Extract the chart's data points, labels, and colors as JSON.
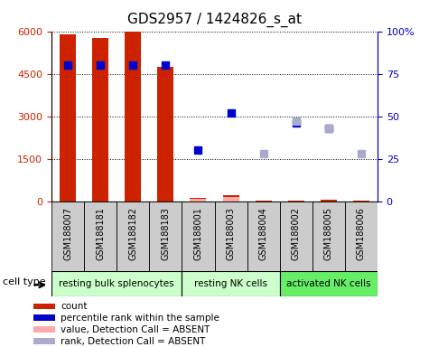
{
  "title": "GDS2957 / 1424826_s_at",
  "samples": [
    "GSM188007",
    "GSM188181",
    "GSM188182",
    "GSM188183",
    "GSM188001",
    "GSM188003",
    "GSM188004",
    "GSM188002",
    "GSM188005",
    "GSM188006"
  ],
  "counts": [
    5900,
    5750,
    6000,
    4750,
    120,
    200,
    30,
    20,
    50,
    10
  ],
  "percentile_ranks_right": [
    80,
    80,
    80,
    80,
    null,
    null,
    null,
    null,
    null,
    null
  ],
  "blue_present_right": [
    null,
    null,
    null,
    null,
    30,
    52,
    null,
    46,
    43,
    null
  ],
  "absent_ranks_right": [
    null,
    null,
    null,
    null,
    null,
    null,
    28,
    47,
    null,
    28
  ],
  "absent_value_bars": [
    null,
    null,
    null,
    null,
    100,
    140,
    null,
    null,
    null,
    null
  ],
  "absent_value_right": [
    null,
    null,
    null,
    null,
    null,
    null,
    null,
    null,
    43,
    null
  ],
  "count_color": "#cc2200",
  "blue_present_color": "#0000cc",
  "absent_value_color": "#ffaaaa",
  "absent_rank_color": "#aaaacc",
  "ylim_left": [
    0,
    6000
  ],
  "ylim_right": [
    0,
    100
  ],
  "yticks_left": [
    0,
    1500,
    3000,
    4500,
    6000
  ],
  "yticks_right": [
    0,
    25,
    50,
    75,
    100
  ],
  "group_definitions": [
    {
      "start": 0,
      "end": 3,
      "label": "resting bulk splenocytes",
      "color": "#ccffcc"
    },
    {
      "start": 4,
      "end": 6,
      "label": "resting NK cells",
      "color": "#ccffcc"
    },
    {
      "start": 7,
      "end": 9,
      "label": "activated NK cells",
      "color": "#66ee66"
    }
  ],
  "tick_color_left": "#cc2200",
  "tick_color_right": "#0000cc",
  "grid_color": "#000000",
  "sample_box_color": "#cccccc",
  "legend": [
    {
      "label": "count",
      "color": "#cc2200"
    },
    {
      "label": "percentile rank within the sample",
      "color": "#0000cc"
    },
    {
      "label": "value, Detection Call = ABSENT",
      "color": "#ffaaaa"
    },
    {
      "label": "rank, Detection Call = ABSENT",
      "color": "#aaaacc"
    }
  ]
}
